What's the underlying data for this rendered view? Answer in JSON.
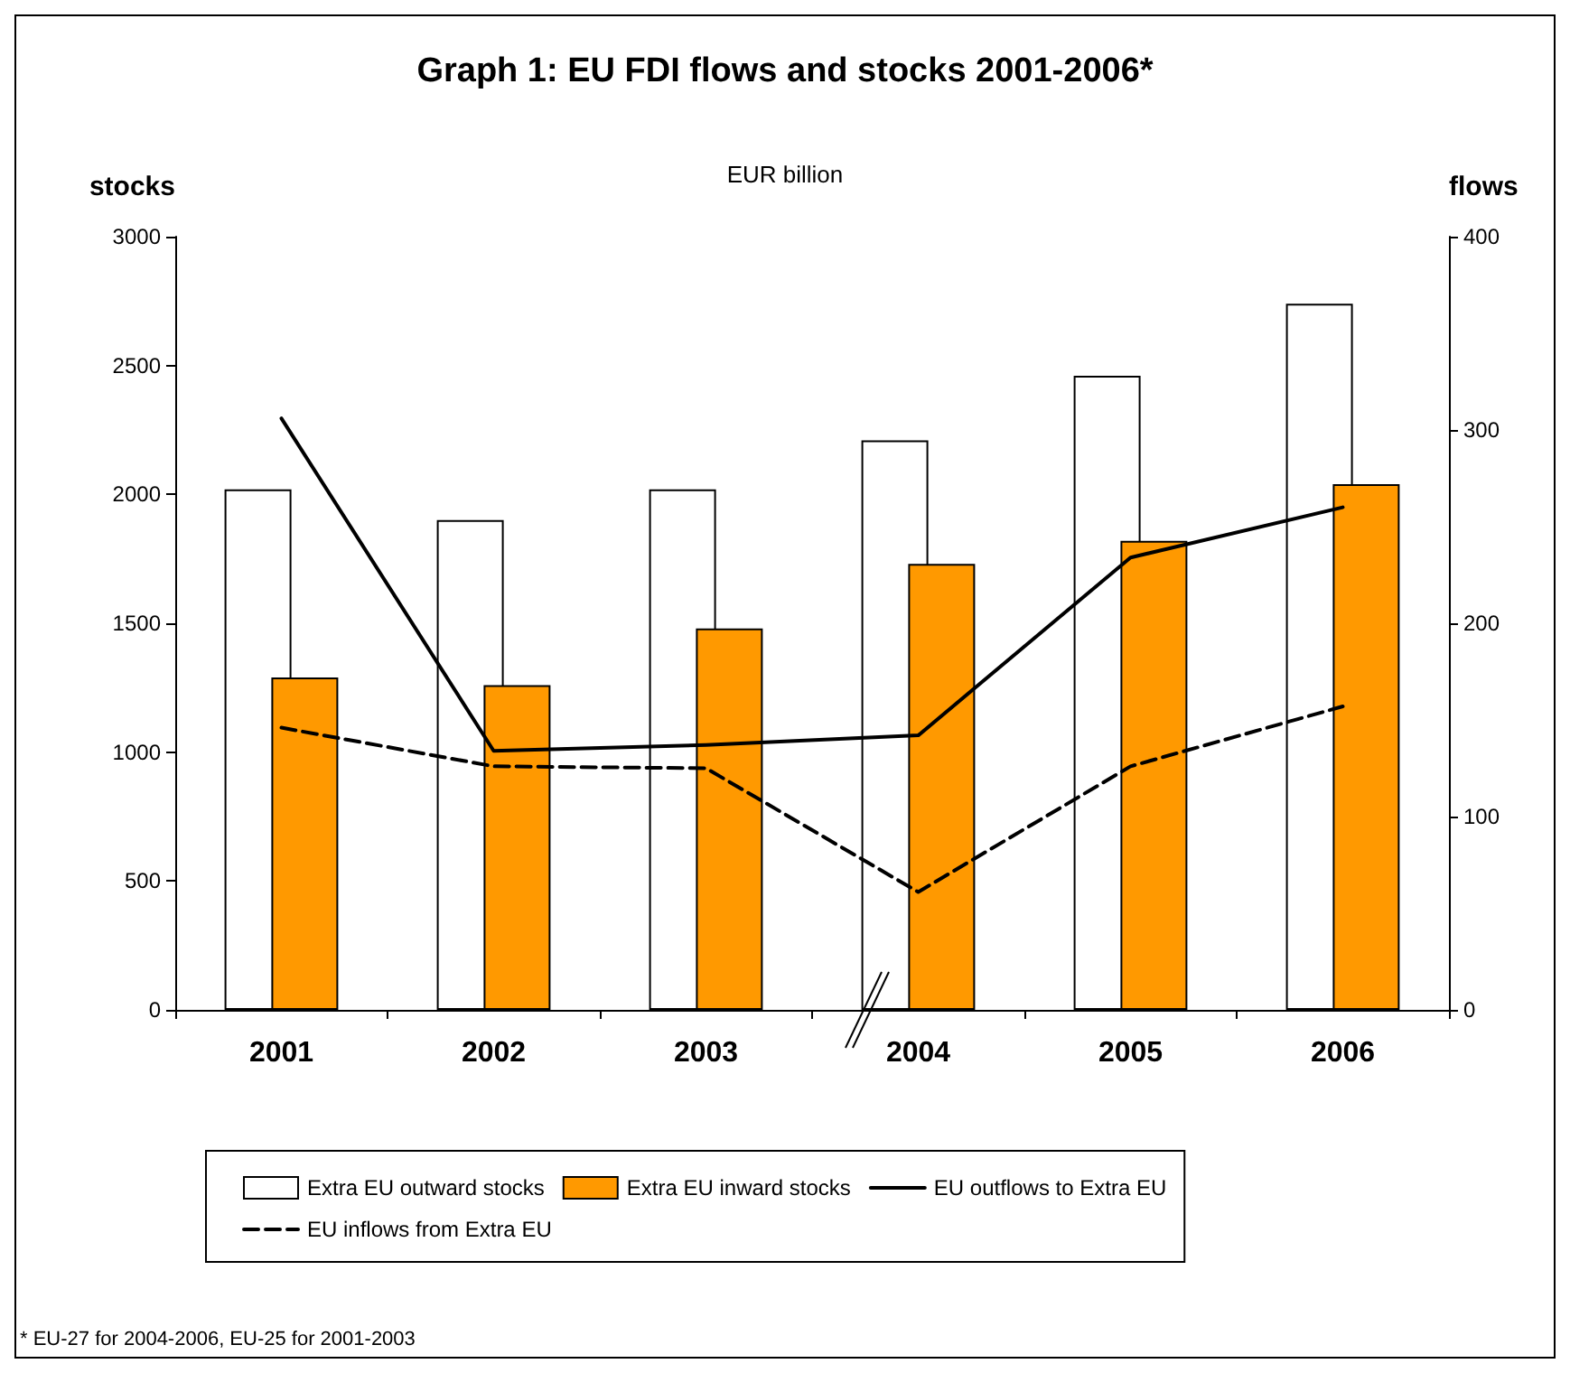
{
  "chart_data": {
    "type": "bar",
    "title": "Graph 1: EU FDI flows and stocks 2001-2006*",
    "subtitle": "EUR billion",
    "ylabel": "stocks",
    "y2label": "flows",
    "categories": [
      "2001",
      "2002",
      "2003",
      "2004",
      "2005",
      "2006"
    ],
    "series": [
      {
        "name": "Extra EU outward stocks",
        "color": "#ffffff",
        "values": [
          2020,
          1900,
          2020,
          2210,
          2460,
          2740
        ]
      },
      {
        "name": "Extra EU inward stocks",
        "color": "#ff9900",
        "values": [
          1290,
          1260,
          1480,
          1730,
          1820,
          2040
        ]
      },
      {
        "name": "EU outflows to Extra EU",
        "type": "line",
        "axis": "y2",
        "color": "#000000",
        "line_style": "solid",
        "values": [
          306,
          134,
          137,
          142,
          234,
          260
        ]
      },
      {
        "name": "EU inflows from Extra EU",
        "type": "line",
        "axis": "y2",
        "color": "#000000",
        "line_style": "dashed",
        "values": [
          146,
          126,
          125,
          61,
          126,
          157
        ]
      }
    ],
    "ylim": [
      0,
      3000
    ],
    "yticks": [
      0,
      500,
      1000,
      1500,
      2000,
      2500,
      3000
    ],
    "y2lim": [
      0,
      400
    ],
    "y2ticks": [
      0,
      100,
      200,
      300,
      400
    ],
    "legend": "bottom",
    "grid": false,
    "marker": "none",
    "annotations": [
      "* EU-27 for 2004-2006, EU-25 for 2001-2003"
    ]
  }
}
